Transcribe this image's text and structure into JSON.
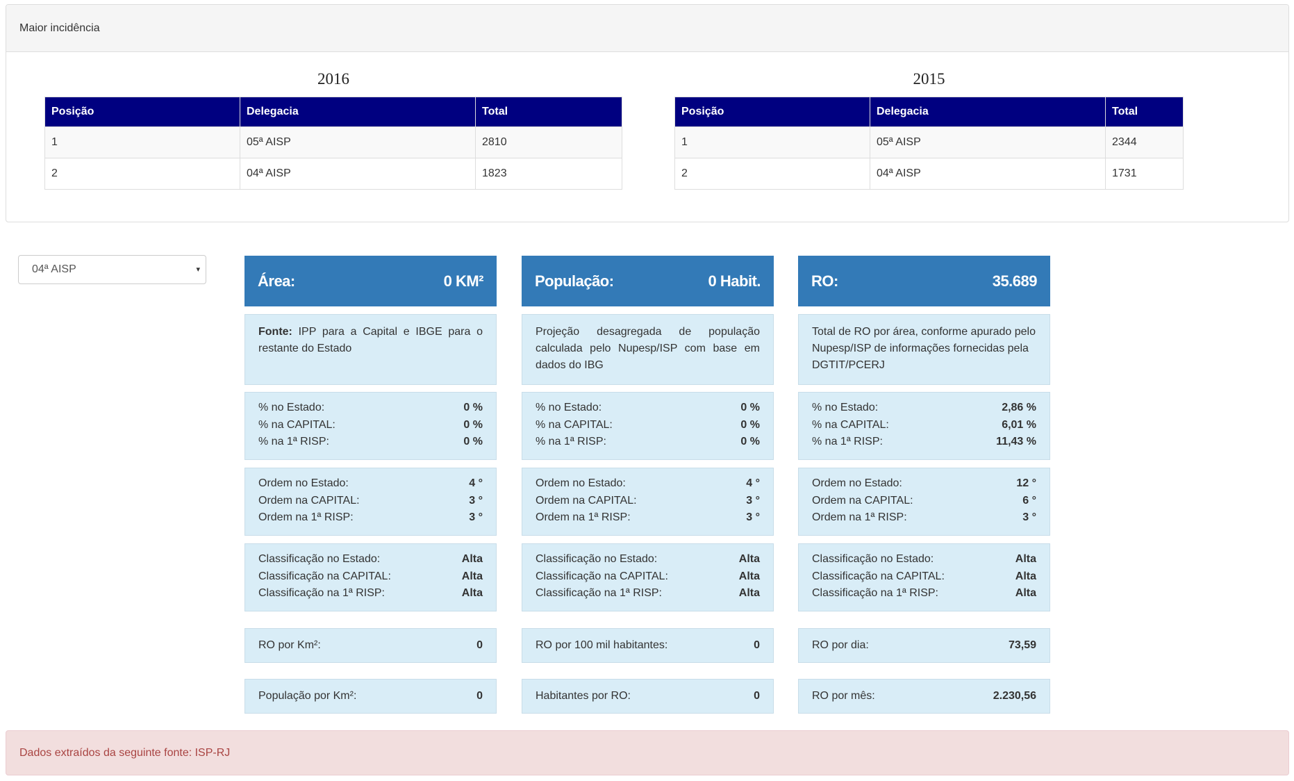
{
  "panel": {
    "title": "Maior incidência"
  },
  "tables": [
    {
      "year": "2016",
      "headers": [
        "Posição",
        "Delegacia",
        "Total"
      ],
      "rows": [
        [
          "1",
          "05ª AISP",
          "2810"
        ],
        [
          "2",
          "04ª AISP",
          "1823"
        ]
      ]
    },
    {
      "year": "2015",
      "headers": [
        "Posição",
        "Delegacia",
        "Total"
      ],
      "rows": [
        [
          "1",
          "05ª AISP",
          "2344"
        ],
        [
          "2",
          "04ª AISP",
          "1731"
        ]
      ]
    }
  ],
  "selector": {
    "value": "04ª AISP",
    "caret": "▾"
  },
  "columns": [
    {
      "header_label": "Área:",
      "header_value": "0 KM²",
      "source_label": "Fonte:",
      "source_text": " IPP para a Capital e IBGE para o restante do Estado",
      "percent": [
        {
          "label": "% no Estado:",
          "value": "0 %"
        },
        {
          "label": "% na CAPITAL:",
          "value": "0 %"
        },
        {
          "label": "% na 1ª RISP:",
          "value": "0 %"
        }
      ],
      "order": [
        {
          "label": "Ordem no Estado:",
          "value": "4 °"
        },
        {
          "label": "Ordem na CAPITAL:",
          "value": "3 °"
        },
        {
          "label": "Ordem na 1ª RISP:",
          "value": "3 °"
        }
      ],
      "classification": [
        {
          "label": "Classificação no Estado:",
          "value": "Alta"
        },
        {
          "label": "Classificação na CAPITAL:",
          "value": "Alta"
        },
        {
          "label": "Classificação na 1ª RISP:",
          "value": "Alta"
        }
      ],
      "metric1": {
        "label": "RO por Km²:",
        "value": "0"
      },
      "metric2": {
        "label": "População por Km²:",
        "value": "0"
      }
    },
    {
      "header_label": "População:",
      "header_value": "0 Habit.",
      "source_label": "",
      "source_text": "Projeção desagregada de população calculada pelo Nupesp/ISP com base em dados do IBG",
      "percent": [
        {
          "label": "% no Estado:",
          "value": "0 %"
        },
        {
          "label": "% na CAPITAL:",
          "value": "0 %"
        },
        {
          "label": "% na 1ª RISP:",
          "value": "0 %"
        }
      ],
      "order": [
        {
          "label": "Ordem no Estado:",
          "value": "4 °"
        },
        {
          "label": "Ordem na CAPITAL:",
          "value": "3 °"
        },
        {
          "label": "Ordem na 1ª RISP:",
          "value": "3 °"
        }
      ],
      "classification": [
        {
          "label": "Classificação no Estado:",
          "value": "Alta"
        },
        {
          "label": "Classificação na CAPITAL:",
          "value": "Alta"
        },
        {
          "label": "Classificação na 1ª RISP:",
          "value": "Alta"
        }
      ],
      "metric1": {
        "label": "RO por 100 mil habitantes:",
        "value": "0"
      },
      "metric2": {
        "label": "Habitantes por RO:",
        "value": "0"
      }
    },
    {
      "header_label": "RO:",
      "header_value": "35.689",
      "source_label": "",
      "source_text": "Total de RO por área, conforme apurado pelo Nupesp/ISP de informações fornecidas pela DGTIT/PCERJ",
      "percent": [
        {
          "label": "% no Estado:",
          "value": "2,86 %"
        },
        {
          "label": "% na CAPITAL:",
          "value": "6,01 %"
        },
        {
          "label": "% na 1ª RISP:",
          "value": "11,43 %"
        }
      ],
      "order": [
        {
          "label": "Ordem no Estado:",
          "value": "12 °"
        },
        {
          "label": "Ordem na CAPITAL:",
          "value": "6 °"
        },
        {
          "label": "Ordem na 1ª RISP:",
          "value": "3 °"
        }
      ],
      "classification": [
        {
          "label": "Classificação no Estado:",
          "value": "Alta"
        },
        {
          "label": "Classificação na CAPITAL:",
          "value": "Alta"
        },
        {
          "label": "Classificação na 1ª RISP:",
          "value": "Alta"
        }
      ],
      "metric1": {
        "label": "RO por dia:",
        "value": "73,59"
      },
      "metric2": {
        "label": "RO por mês:",
        "value": "2.230,56"
      }
    }
  ],
  "alert": {
    "text": "Dados extraídos da seguinte fonte: ISP-RJ"
  },
  "colors": {
    "table_header": "#000080",
    "card_header": "#337ab7",
    "card_body": "#d9edf7",
    "alert_bg": "#f2dede",
    "alert_text": "#a94442"
  }
}
